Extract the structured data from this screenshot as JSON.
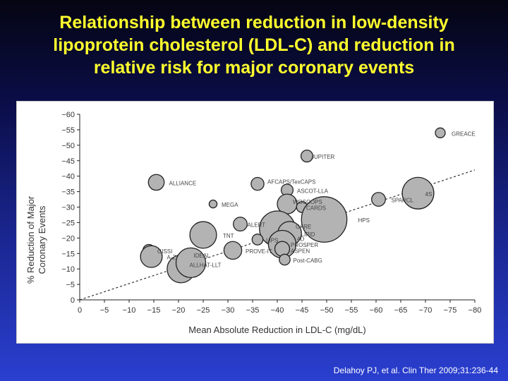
{
  "slide": {
    "title_lines": [
      "Relationship between reduction in low-density",
      "lipoprotein cholesterol (LDL-C) and reduction in",
      "relative risk for major coronary events"
    ],
    "citation": "Delahoy PJ, et al. Clin Ther 2009;31:236-44"
  },
  "chart_data": {
    "type": "scatter",
    "xlabel": "Mean Absolute Reduction in LDL-C (mg/dL)",
    "ylabel_lines": [
      "% Reduction of Major",
      "Coronary Events"
    ],
    "xlim": [
      0,
      -80
    ],
    "ylim": [
      0,
      -60
    ],
    "x_ticks": [
      "0",
      "−5",
      "−10",
      "−15",
      "−20",
      "−25",
      "−30",
      "−35",
      "−40",
      "−45",
      "−50",
      "−55",
      "−60",
      "−65",
      "−70",
      "−75",
      "−80"
    ],
    "y_ticks": [
      "0",
      "−5",
      "−10",
      "−15",
      "−20",
      "−25",
      "−30",
      "−35",
      "−40",
      "−45",
      "−50",
      "−55",
      "−60"
    ],
    "grid": false,
    "marker_fill": "#b3b3b3",
    "marker_edge": "#222222",
    "trendline": {
      "style": "dashed",
      "from": [
        0,
        0
      ],
      "to": [
        -80,
        -42
      ]
    },
    "points": [
      {
        "name": "GREACE",
        "x": -73,
        "y": -54,
        "size": 1.0
      },
      {
        "name": "JUPITER",
        "x": -46,
        "y": -46.5,
        "size": 1.2
      },
      {
        "name": "ALLIANCE",
        "x": -15.5,
        "y": -38,
        "size": 1.6
      },
      {
        "name": "AFCAPS/TexCAPS",
        "x": -36,
        "y": -37.5,
        "size": 1.3
      },
      {
        "name": "ASCOT-LLA",
        "x": -42,
        "y": -35.5,
        "size": 1.2
      },
      {
        "name": "4S",
        "x": -68.5,
        "y": -34.5,
        "size": 3.2
      },
      {
        "name": "SPARCL",
        "x": -60.5,
        "y": -32.5,
        "size": 1.4
      },
      {
        "name": "MEGA",
        "x": -27,
        "y": -31,
        "size": 0.8
      },
      {
        "name": "WOSCOPS",
        "x": -42,
        "y": -31,
        "size": 2.0
      },
      {
        "name": "CARDS",
        "x": -45,
        "y": -30,
        "size": 1.1
      },
      {
        "name": "HPS",
        "x": -49.5,
        "y": -26,
        "size": 4.6
      },
      {
        "name": "ALERT",
        "x": -32.5,
        "y": -24.5,
        "size": 1.4
      },
      {
        "name": "CARE",
        "x": -40,
        "y": -23,
        "size": 3.6
      },
      {
        "name": "TNT",
        "x": -25,
        "y": -21,
        "size": 2.7
      },
      {
        "name": "LIPID",
        "x": -42.5,
        "y": -21.5,
        "size": 2.4
      },
      {
        "name": "LIPS",
        "x": -36,
        "y": -19.5,
        "size": 1.1
      },
      {
        "name": "4D",
        "x": -42,
        "y": -19.5,
        "size": 1.4
      },
      {
        "name": "PROSPER",
        "x": -41,
        "y": -18,
        "size": 2.8
      },
      {
        "name": "PROVE-IT",
        "x": -31,
        "y": -16,
        "size": 1.8
      },
      {
        "name": "ASPEN",
        "x": -41,
        "y": -16.5,
        "size": 1.5
      },
      {
        "name": "GISSI",
        "x": -14,
        "y": -16,
        "size": 1.2
      },
      {
        "name": "A-Z",
        "x": -14.5,
        "y": -14,
        "size": 2.2
      },
      {
        "name": "Post-CABG",
        "x": -41.5,
        "y": -13,
        "size": 1.1
      },
      {
        "name": "IDEAL",
        "x": -20.5,
        "y": -10,
        "size": 2.8
      },
      {
        "name": "ALLHAT-LLT",
        "x": -22.5,
        "y": -12,
        "size": 3.0
      }
    ]
  }
}
